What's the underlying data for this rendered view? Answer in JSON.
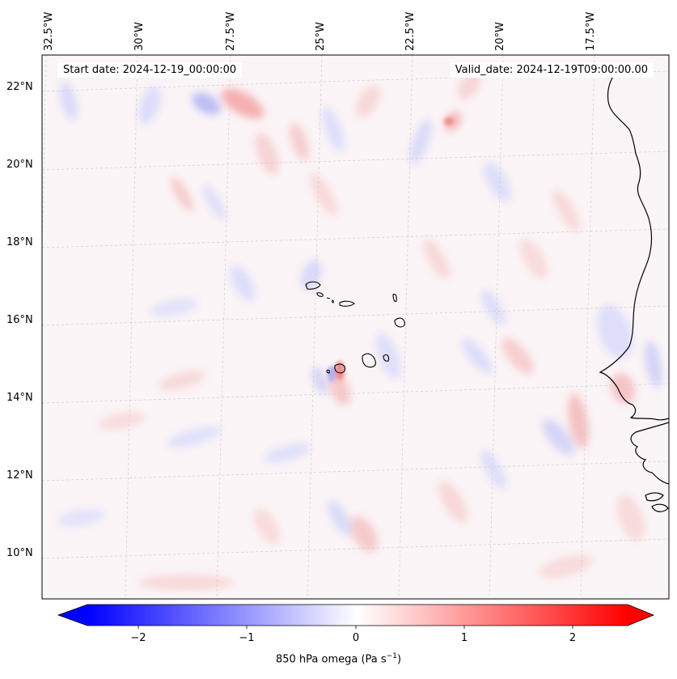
{
  "map": {
    "projection": "lambert-conformal",
    "region": "Cape Verde and West African coast",
    "start_date_text": "Start date: 2024-12-19_00:00:00",
    "valid_date_text": "Valid_date: 2024-12-19T09:00:00.00",
    "lon_ticks": [
      {
        "value": -32.5,
        "label": "32.5°W"
      },
      {
        "value": -30.0,
        "label": "30°W"
      },
      {
        "value": -27.5,
        "label": "27.5°W"
      },
      {
        "value": -25.0,
        "label": "25°W"
      },
      {
        "value": -22.5,
        "label": "22.5°W"
      },
      {
        "value": -20.0,
        "label": "20°W"
      },
      {
        "value": -17.5,
        "label": "17.5°W"
      }
    ],
    "lat_ticks": [
      {
        "value": 22,
        "label": "22°N"
      },
      {
        "value": 20,
        "label": "20°N"
      },
      {
        "value": 18,
        "label": "18°N"
      },
      {
        "value": 16,
        "label": "16°N"
      },
      {
        "value": 14,
        "label": "14°N"
      },
      {
        "value": 12,
        "label": "12°N"
      },
      {
        "value": 10,
        "label": "10°N"
      }
    ],
    "gridlines": true,
    "coastline_color": "#000000"
  },
  "colorbar": {
    "label_text": "850 hPa omega (Pa s",
    "label_exponent": "−1",
    "label_close": ")",
    "cmap": "bwr",
    "range": [
      -2.7,
      2.7
    ],
    "extend": "both",
    "ticks": [
      {
        "value": -2,
        "label": "−2"
      },
      {
        "value": -1,
        "label": "−1"
      },
      {
        "value": 0,
        "label": "0"
      },
      {
        "value": 1,
        "label": "1"
      },
      {
        "value": 2,
        "label": "2"
      }
    ],
    "colors": {
      "min": "#0000ff",
      "mid": "#ffffff",
      "max": "#ff0000"
    }
  }
}
